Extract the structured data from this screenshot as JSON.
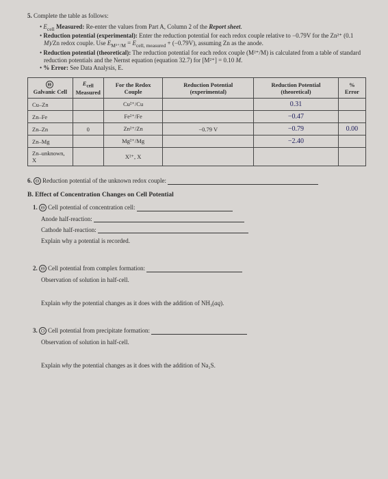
{
  "q5": {
    "num": "5.",
    "intro": "Complete the table as follows:",
    "b1": "E_cell Measured: Re-enter the values from Part A, Column 2 of the Report sheet.",
    "b2": "Reduction potential (experimental): Enter the reduction potential for each redox couple relative to −0.79V for the Zn²⁺ (0.1 M)/Zn redox couple. Use E_M²⁺/M = E_cell, measured + (−0.79V), assuming Zn as the anode.",
    "b3": "Reduction potential (theoretical): The reduction potential for each redox couple (M²⁺/M) is calculated from a table of standard reduction potentials and the Nernst equation (equation 32.7) for [M²⁺] = 0.10 M.",
    "b4": "% Error: See Data Analysis, E."
  },
  "table": {
    "headers": {
      "c1": "Galvanic Cell",
      "c2": "E_cell Measured",
      "c3": "For the Redox Couple",
      "c4": "Reduction Potential (experimental)",
      "c5": "Reduction Potential (theoretical)",
      "c6": "% Error"
    },
    "rows": [
      {
        "cell": "Cu–Zn",
        "meas": "",
        "couple": "Cu²⁺/Cu",
        "exp": "",
        "theo": "0.31",
        "err": ""
      },
      {
        "cell": "Zn–Fe",
        "meas": "",
        "couple": "Fe²⁺/Fe",
        "exp": "",
        "theo": "−0.47",
        "err": ""
      },
      {
        "cell": "Zn–Zn",
        "meas": "0",
        "couple": "Zn²⁺/Zn",
        "exp": "−0.79 V",
        "theo": "−0.79",
        "err": "0.00"
      },
      {
        "cell": "Zn–Mg",
        "meas": "",
        "couple": "Mg²⁺/Mg",
        "exp": "",
        "theo": "−2.40",
        "err": ""
      },
      {
        "cell": "Zn–unknown, X",
        "meas": "",
        "couple": "X²⁺, X",
        "exp": "",
        "theo": "",
        "err": ""
      }
    ]
  },
  "q6": {
    "num": "6.",
    "circ": "Θ",
    "text": "Reduction potential of the unknown redox couple:"
  },
  "secB": "B. Effect of Concentration Changes on Cell Potential",
  "b1": {
    "num": "1.",
    "circ": "Θ",
    "text": "Cell potential of concentration cell:"
  },
  "anode": "Anode half-reaction:",
  "cathode": "Cathode half-reaction:",
  "explain1": "Explain why a potential is recorded.",
  "b2": {
    "num": "2.",
    "circ": "Θ",
    "text": "Cell potential from complex formation:"
  },
  "obs2": "Observation of solution in half-cell.",
  "explain2": "Explain why the potential changes as it does with the addition of NH₃(aq).",
  "b3": {
    "num": "3.",
    "circ": "O",
    "text": "Cell potential from precipitate formation:"
  },
  "obs3": "Observation of solution in half-cell.",
  "explain3": "Explain why the potential changes as it does with the addition of Na₂S.",
  "colors": {
    "bg": "#d8d5d2",
    "text": "#2a2a2a",
    "border": "#444",
    "hand": "#1a1a5a"
  }
}
